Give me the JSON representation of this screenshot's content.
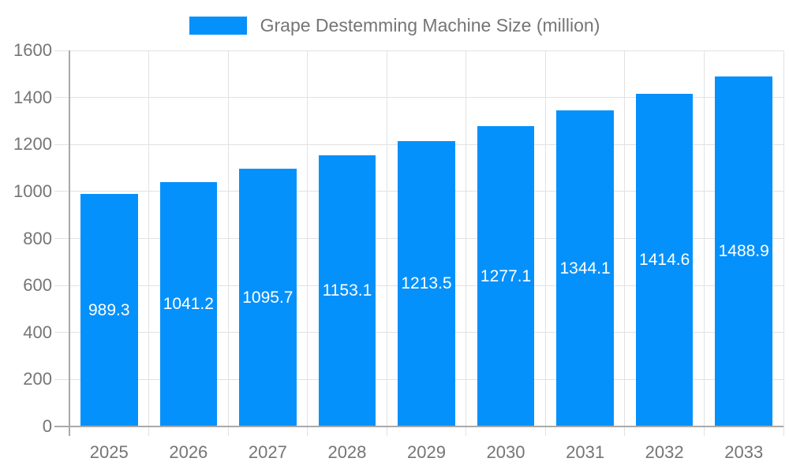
{
  "chart_data": {
    "type": "bar",
    "title": "Grape Destemming Machine Size (million)",
    "categories": [
      "2025",
      "2026",
      "2027",
      "2028",
      "2029",
      "2030",
      "2031",
      "2032",
      "2033"
    ],
    "values": [
      989.3,
      1041.2,
      1095.7,
      1153.1,
      1213.5,
      1277.1,
      1344.1,
      1414.6,
      1488.9
    ],
    "value_labels": [
      "989.3",
      "1041.2",
      "1095.7",
      "1153.1",
      "1213.5",
      "1277.1",
      "1344.1",
      "1414.6",
      "1488.9"
    ],
    "xlabel": "",
    "ylabel": "",
    "ylim": [
      0,
      1600
    ],
    "y_ticks": [
      0,
      200,
      400,
      600,
      800,
      1000,
      1200,
      1400,
      1600
    ],
    "y_tick_labels": [
      "0",
      "200",
      "400",
      "600",
      "800",
      "1000",
      "1200",
      "1400",
      "1600"
    ],
    "grid": true,
    "legend_position": "top",
    "colors": {
      "bar": "#0591fb",
      "bar_label": "#ffffff",
      "axis_text": "#757575",
      "gridline": "#e2e2e2",
      "axis_line": "#a9a9a9",
      "background": "#ffffff"
    }
  }
}
